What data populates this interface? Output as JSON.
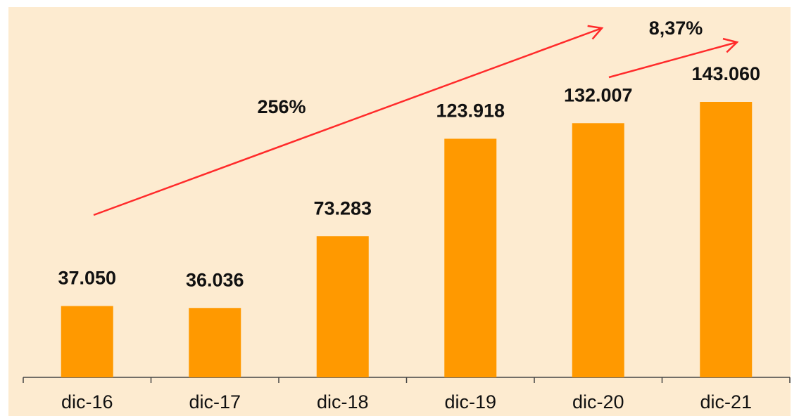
{
  "chart_data": {
    "type": "bar",
    "categories": [
      "dic-16",
      "dic-17",
      "dic-18",
      "dic-19",
      "dic-20",
      "dic-21"
    ],
    "values": [
      37050,
      36036,
      73283,
      123918,
      132007,
      143060
    ],
    "value_labels": [
      "37.050",
      "36.036",
      "73.283",
      "123.918",
      "132.007",
      "143.060"
    ],
    "color": "#ff9900",
    "annotations": [
      "256%",
      "8,37%"
    ]
  }
}
